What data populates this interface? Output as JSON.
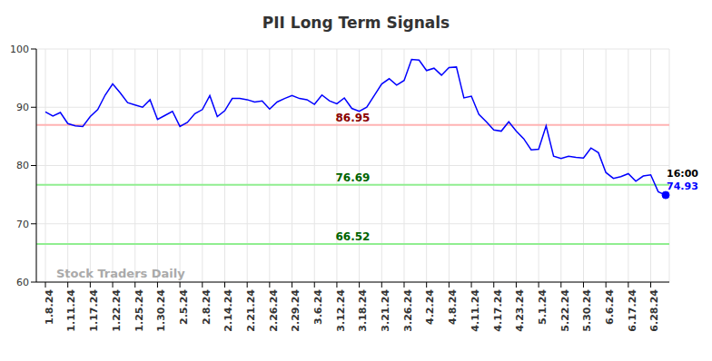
{
  "chart_data": {
    "type": "line",
    "title": "PII Long Term Signals",
    "watermark": "Stock Traders Daily",
    "categories": [
      "1.8.24",
      null,
      null,
      "1.11.24",
      null,
      null,
      "1.17.24",
      null,
      null,
      "1.22.24",
      null,
      null,
      "1.25.24",
      null,
      null,
      "1.30.24",
      null,
      null,
      "2.5.24",
      null,
      null,
      "2.8.24",
      null,
      null,
      "2.14.24",
      null,
      null,
      "2.21.24",
      null,
      null,
      "2.26.24",
      null,
      null,
      "2.29.24",
      null,
      null,
      "3.6.24",
      null,
      null,
      "3.12.24",
      null,
      null,
      "3.18.24",
      null,
      null,
      "3.21.24",
      null,
      null,
      "3.26.24",
      null,
      null,
      "4.2.24",
      null,
      null,
      "4.8.24",
      null,
      null,
      "4.11.24",
      null,
      null,
      "4.17.24",
      null,
      null,
      "4.23.24",
      null,
      null,
      "5.1.24",
      null,
      null,
      "5.22.24",
      null,
      null,
      "5.30.24",
      null,
      null,
      "6.6.24",
      null,
      null,
      "6.17.24",
      null,
      null,
      "6.28.24",
      null,
      null
    ],
    "values": [
      89.2,
      88.5,
      89.1,
      87.2,
      86.8,
      86.7,
      88.4,
      89.6,
      92.1,
      94.0,
      92.5,
      90.8,
      90.4,
      90.0,
      91.3,
      87.9,
      88.6,
      89.3,
      86.7,
      87.4,
      88.9,
      89.6,
      92.0,
      88.4,
      89.4,
      91.5,
      91.5,
      91.3,
      90.9,
      91.1,
      89.7,
      90.9,
      91.5,
      92.0,
      91.5,
      91.3,
      90.5,
      92.1,
      91.1,
      90.6,
      91.6,
      89.8,
      89.3,
      90.0,
      92.0,
      94.0,
      94.9,
      93.8,
      94.6,
      98.2,
      98.1,
      96.3,
      96.7,
      95.5,
      96.8,
      96.9,
      91.6,
      91.9,
      88.8,
      87.5,
      86.1,
      85.9,
      87.5,
      85.9,
      84.6,
      82.7,
      82.8,
      86.8,
      81.6,
      81.2,
      81.6,
      81.4,
      81.3,
      83.0,
      82.2,
      78.8,
      77.8,
      78.1,
      78.6,
      77.3,
      78.2,
      78.4,
      75.5,
      74.93
    ],
    "color": "#0000ff",
    "ylim": [
      60,
      100
    ],
    "yticks": [
      60,
      70,
      80,
      90,
      100
    ],
    "grid": true,
    "reference_lines": [
      {
        "value": 86.95,
        "color": "#ffb3b3",
        "label_color": "#8b0000"
      },
      {
        "value": 76.69,
        "color": "#90ee90",
        "label_color": "#006400"
      },
      {
        "value": 66.52,
        "color": "#90ee90",
        "label_color": "#006400"
      }
    ],
    "end_label": {
      "time": "16:00",
      "value": 74.93,
      "color": "#0000ff"
    }
  }
}
